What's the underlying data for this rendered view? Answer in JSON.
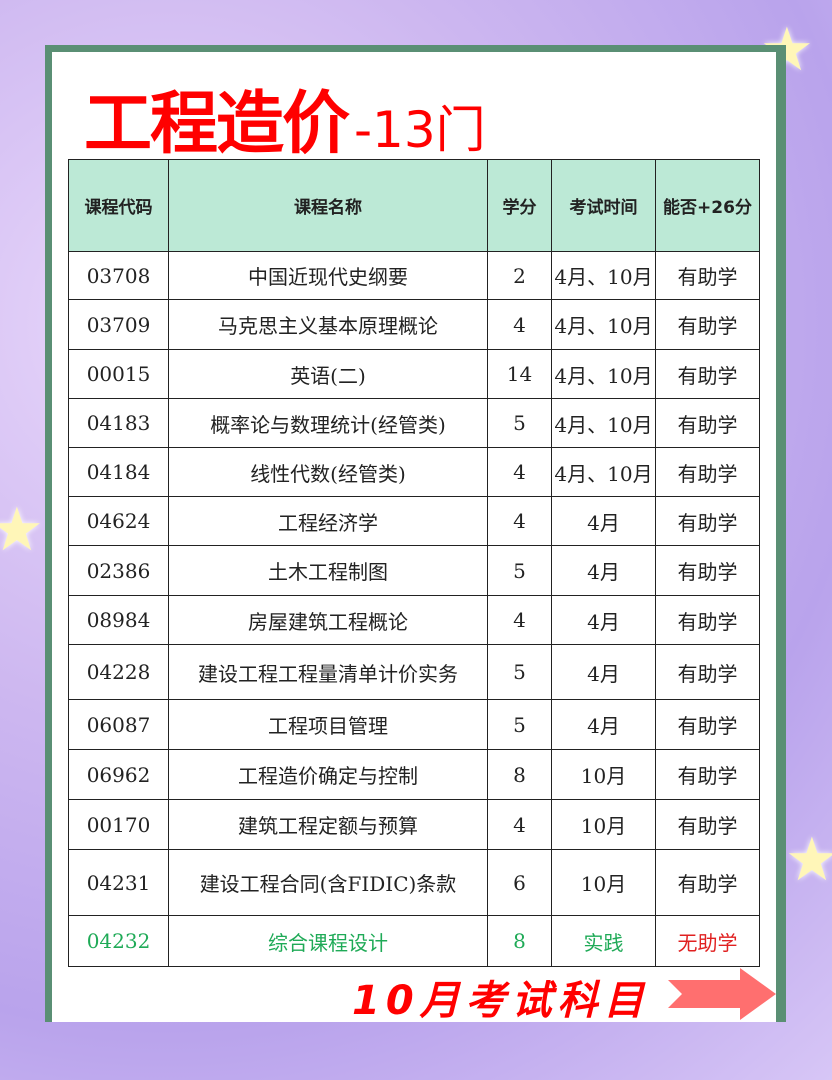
{
  "title": {
    "main": "工程造价",
    "suffix": "-13门"
  },
  "table": {
    "headers": [
      "课程代码",
      "课程名称",
      "学分",
      "考试时间",
      "能否+26分"
    ],
    "rows": [
      [
        "03708",
        "中国近现代史纲要",
        "2",
        "4月、10月",
        "有助学"
      ],
      [
        "03709",
        "马克思主义基本原理概论",
        "4",
        "4月、10月",
        "有助学"
      ],
      [
        "00015",
        "英语(二)",
        "14",
        "4月、10月",
        "有助学"
      ],
      [
        "04183",
        "概率论与数理统计(经管类)",
        "5",
        "4月、10月",
        "有助学"
      ],
      [
        "04184",
        "线性代数(经管类)",
        "4",
        "4月、10月",
        "有助学"
      ],
      [
        "04624",
        "工程经济学",
        "4",
        "4月",
        "有助学"
      ],
      [
        "02386",
        "土木工程制图",
        "5",
        "4月",
        "有助学"
      ],
      [
        "08984",
        "房屋建筑工程概论",
        "4",
        "4月",
        "有助学"
      ],
      [
        "04228",
        "建设工程工程量清单计价实务",
        "5",
        "4月",
        "有助学"
      ],
      [
        "06087",
        "工程项目管理",
        "5",
        "4月",
        "有助学"
      ],
      [
        "06962",
        "工程造价确定与控制",
        "8",
        "10月",
        "有助学"
      ],
      [
        "00170",
        "建筑工程定额与预算",
        "4",
        "10月",
        "有助学"
      ],
      [
        "04231",
        "建设工程合同(含FIDIC)条款",
        "6",
        "10月",
        "有助学"
      ],
      [
        "04232",
        "综合课程设计",
        "8",
        "实践",
        "无助学"
      ]
    ]
  },
  "footer": {
    "label": "10月考试科目"
  },
  "colors": {
    "title": "#ff0000",
    "header_bg": "#bce9d6",
    "border": "#5a8f74",
    "practice": "#1faa57",
    "no_aid": "#e02020",
    "arrow": "#ff6f6f"
  }
}
